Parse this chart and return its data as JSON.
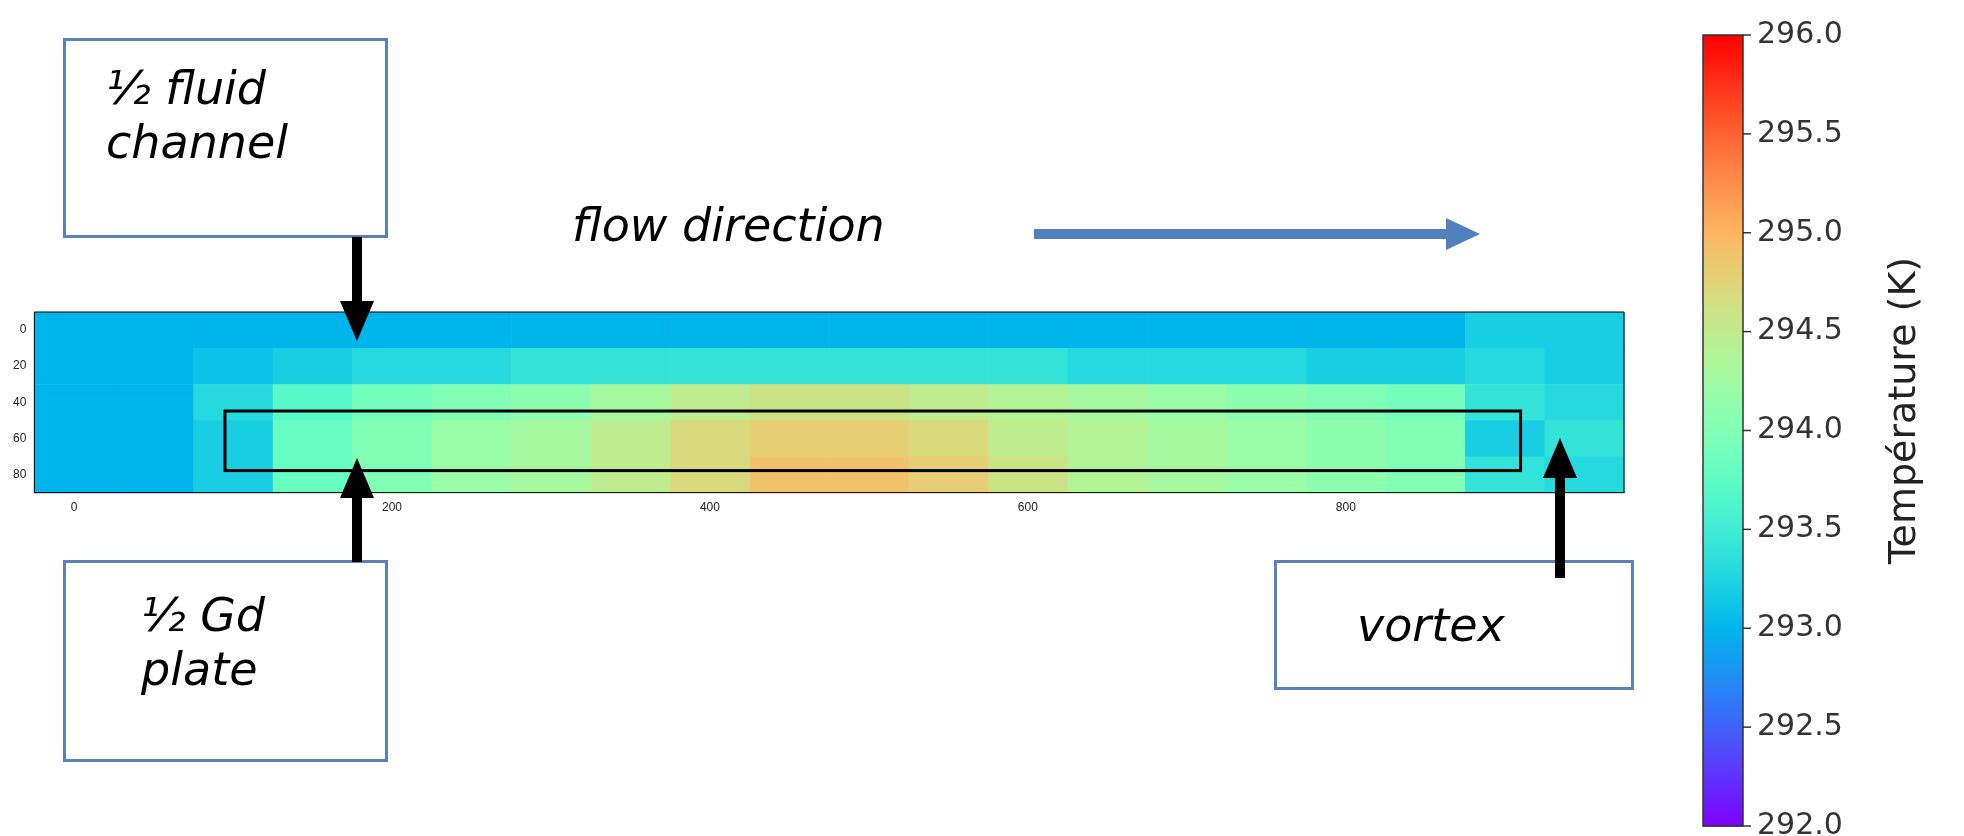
{
  "chart_data": {
    "type": "heatmap",
    "categories": [
      "0",
      null,
      null,
      null,
      "200",
      null,
      null,
      null,
      "400",
      null,
      null,
      null,
      "600",
      null,
      null,
      null,
      "800",
      null,
      null,
      null
    ],
    "y_categories": [
      "0",
      "20",
      "40",
      "60",
      "80"
    ],
    "cells": [
      [
        293.0,
        293.0,
        293.0,
        293.0,
        293.0,
        293.0,
        293.0,
        293.0,
        293.0,
        293.0,
        293.0,
        293.0,
        293.0,
        293.0,
        293.0,
        293.0,
        293.0,
        293.0,
        293.2,
        293.2
      ],
      [
        293.0,
        293.0,
        293.1,
        293.2,
        293.3,
        293.3,
        293.4,
        293.4,
        293.4,
        293.4,
        293.4,
        293.4,
        293.4,
        293.3,
        293.3,
        293.3,
        293.2,
        293.2,
        293.3,
        293.2
      ],
      [
        293.0,
        293.0,
        293.3,
        293.7,
        293.9,
        294.0,
        294.1,
        294.3,
        294.5,
        294.6,
        294.6,
        294.5,
        294.4,
        294.3,
        294.2,
        294.1,
        294.0,
        293.9,
        293.4,
        293.3
      ],
      [
        293.0,
        293.0,
        293.2,
        293.8,
        294.0,
        294.2,
        294.3,
        294.5,
        294.7,
        294.8,
        294.8,
        294.7,
        294.5,
        294.4,
        294.3,
        294.2,
        294.1,
        294.0,
        293.2,
        293.4
      ],
      [
        293.0,
        293.0,
        293.2,
        293.8,
        294.0,
        294.2,
        294.3,
        294.5,
        294.7,
        294.9,
        294.9,
        294.8,
        294.6,
        294.4,
        294.3,
        294.2,
        294.1,
        294.0,
        293.4,
        293.3
      ]
    ],
    "clim": [
      292,
      296
    ],
    "cticks": [
      {
        "value": 292,
        "label": "292.0"
      },
      {
        "value": 292.5,
        "label": "292.5"
      },
      {
        "value": 293,
        "label": "293.0"
      },
      {
        "value": 293.5,
        "label": "293.5"
      },
      {
        "value": 294,
        "label": "294.0"
      },
      {
        "value": 294.5,
        "label": "294.5"
      },
      {
        "value": 295,
        "label": "295.0"
      },
      {
        "value": 295.5,
        "label": "295.5"
      },
      {
        "value": 296,
        "label": "296.0"
      }
    ],
    "clabel": "Température (K)",
    "annotations": [
      "½ fluid channel",
      "½ Gd plate",
      "vortex",
      "flow direction"
    ]
  }
}
